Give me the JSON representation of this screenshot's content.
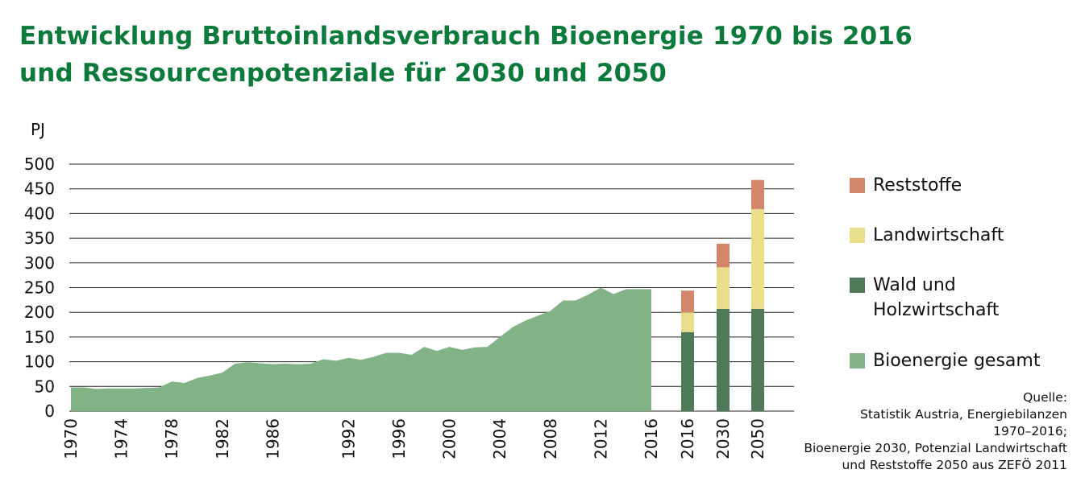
{
  "title_line1": "Entwicklung Bruttoinlandsverbrauch Bioenergie 1970 bis 2016",
  "title_line2": "und Ressourcenpotenziale für 2030 und 2050",
  "chart_data": {
    "type": "area",
    "ylabel": "PJ",
    "ylim": [
      0,
      500
    ],
    "yticks": [
      0,
      50,
      100,
      150,
      200,
      250,
      300,
      350,
      400,
      450,
      500
    ],
    "grid": true,
    "legend_position": "right",
    "x_tick_labels": [
      "1970",
      "1974",
      "1978",
      "1982",
      "1986",
      "1992",
      "1996",
      "2000",
      "2004",
      "2008",
      "2012",
      "2016"
    ],
    "area_series": {
      "name": "Bioenergie gesamt",
      "color": "#82b387",
      "x": [
        1970,
        1971,
        1972,
        1973,
        1974,
        1975,
        1976,
        1977,
        1978,
        1979,
        1980,
        1981,
        1982,
        1983,
        1984,
        1985,
        1986,
        1987,
        1988,
        1989,
        1990,
        1991,
        1992,
        1993,
        1994,
        1995,
        1996,
        1997,
        1998,
        1999,
        2000,
        2001,
        2002,
        2003,
        2004,
        2005,
        2006,
        2007,
        2008,
        2009,
        2010,
        2011,
        2012,
        2013,
        2014,
        2015,
        2016
      ],
      "values": [
        48,
        48,
        45,
        46,
        46,
        46,
        47,
        48,
        60,
        57,
        67,
        72,
        78,
        96,
        99,
        97,
        95,
        96,
        95,
        96,
        105,
        102,
        108,
        104,
        110,
        118,
        118,
        114,
        130,
        122,
        130,
        124,
        129,
        130,
        150,
        170,
        183,
        193,
        203,
        224,
        224,
        236,
        250,
        237,
        247,
        247,
        247
      ]
    },
    "bar_categories": [
      "2016",
      "2030",
      "2050"
    ],
    "bar_series": [
      {
        "name": "Wald und Holzwirtschaft",
        "color": "#4f7a59",
        "values": [
          160,
          207,
          207
        ]
      },
      {
        "name": "Landwirtschaft",
        "color": "#e8de8c",
        "values": [
          40,
          84,
          202
        ]
      },
      {
        "name": "Reststoffe",
        "color": "#d4866a",
        "values": [
          44,
          48,
          59
        ]
      }
    ]
  },
  "legend": {
    "items": [
      {
        "label": "Reststoffe",
        "color": "#d4866a"
      },
      {
        "label": "Landwirtschaft",
        "color": "#e8de8c"
      },
      {
        "label_line1": "Wald und",
        "label_line2": "Holzwirtschaft",
        "color": "#4f7a59"
      },
      {
        "label": "Bioenergie gesamt",
        "color": "#82b387"
      }
    ]
  },
  "source": {
    "line1": "Quelle:",
    "line2": "Statistik Austria, Energiebilanzen",
    "line3": "1970–2016;",
    "line4": "Bioenergie 2030, Potenzial Landwirtschaft",
    "line5": "und Reststoffe 2050 aus ZEFÖ 2011"
  }
}
